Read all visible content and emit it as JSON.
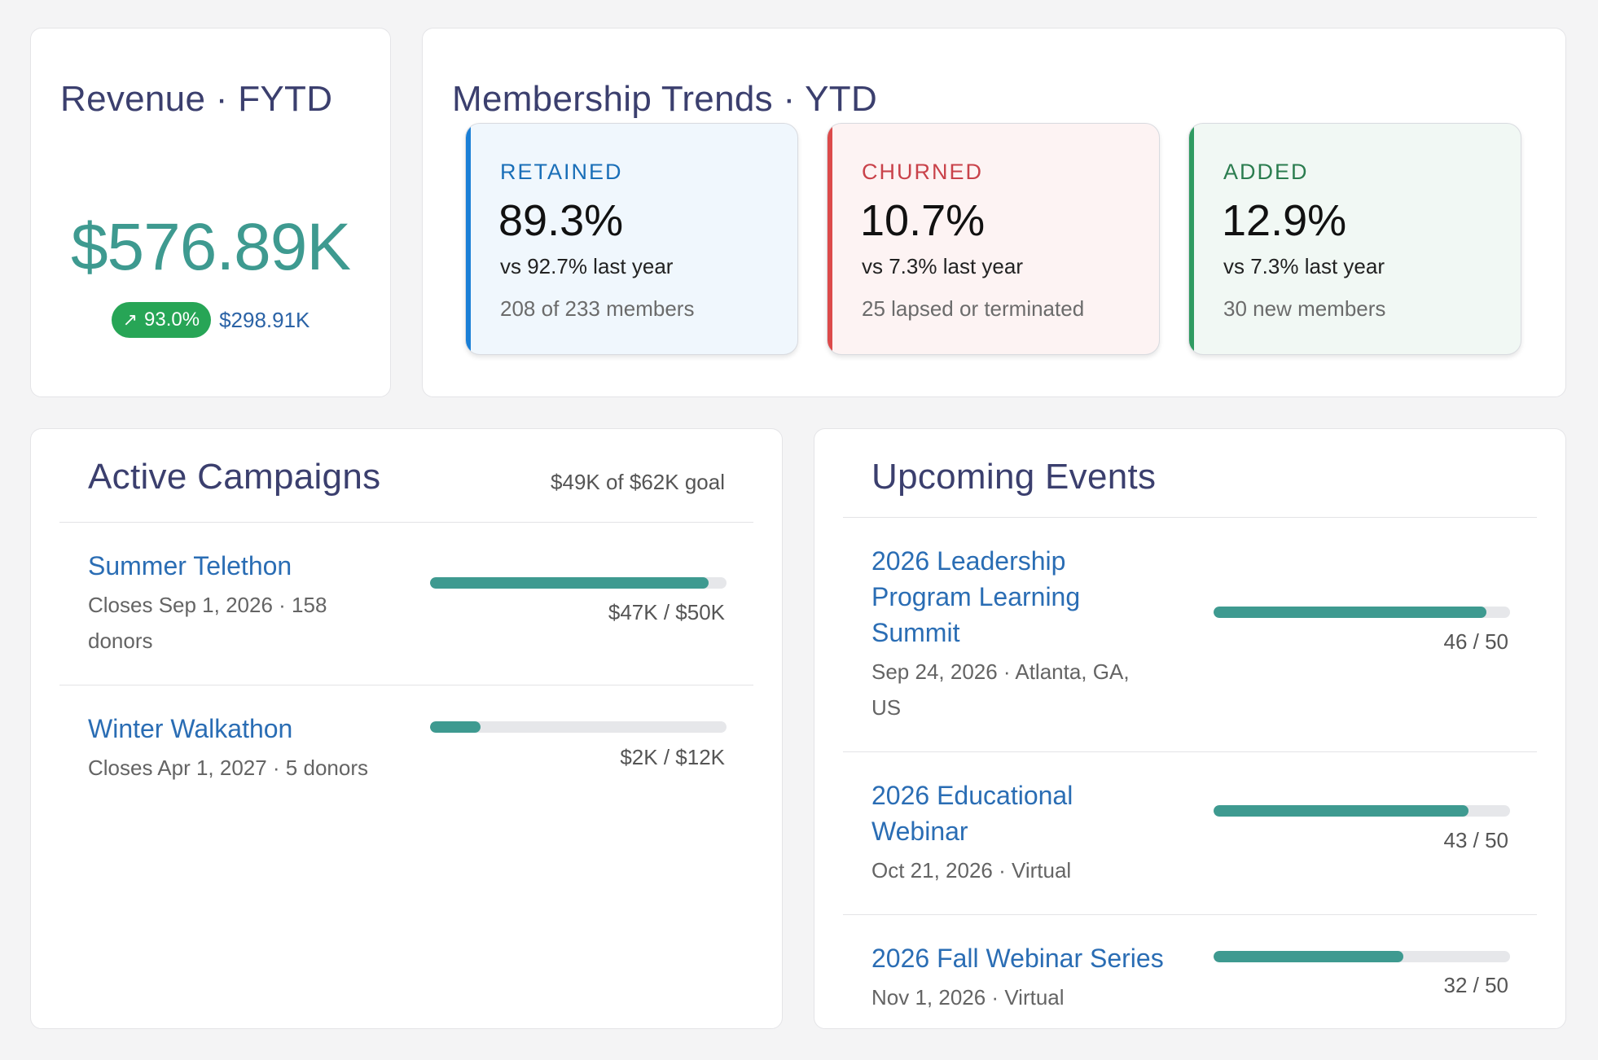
{
  "revenue": {
    "title": "Revenue · FYTD",
    "amount": "$576.89K",
    "delta_icon": "arrow-up-right-icon",
    "delta_percent": "93.0%",
    "delta_amount": "$298.91K",
    "accent_color": "#3e9a90"
  },
  "membership": {
    "title": "Membership Trends · YTD",
    "stats": [
      {
        "label": "RETAINED",
        "value": "89.3%",
        "comparison": "vs 92.7% last year",
        "detail": "208 of 233 members",
        "color": "#1a7fd6"
      },
      {
        "label": "CHURNED",
        "value": "10.7%",
        "comparison": "vs 7.3% last year",
        "detail": "25 lapsed or terminated",
        "color": "#dc4a4a"
      },
      {
        "label": "ADDED",
        "value": "12.9%",
        "comparison": "vs 7.3% last year",
        "detail": "30 new members",
        "color": "#2f9b61"
      }
    ]
  },
  "campaigns": {
    "title": "Active Campaigns",
    "goal_summary": "$49K of $62K goal",
    "items": [
      {
        "name": "Summer Telethon",
        "meta_line1": "Closes Sep 1, 2026 · 158",
        "meta_line2": "donors",
        "progress_label": "$47K / $50K",
        "progress": 0.94
      },
      {
        "name": "Winter Walkathon",
        "meta_line1": "Closes Apr 1, 2027 · 5 donors",
        "meta_line2": "",
        "progress_label": "$2K / $12K",
        "progress": 0.17
      }
    ]
  },
  "events": {
    "title": "Upcoming Events",
    "items": [
      {
        "name_line1": "2026 Leadership",
        "name_line2": "Program Learning",
        "name_line3": "Summit",
        "meta_line1": "Sep 24, 2026 · Atlanta, GA,",
        "meta_line2": "US",
        "progress_label": "46 / 50",
        "progress": 0.92
      },
      {
        "name_line1": "2026 Educational",
        "name_line2": "Webinar",
        "name_line3": "",
        "meta_line1": "Oct 21, 2026 · Virtual",
        "meta_line2": "",
        "progress_label": "43 / 50",
        "progress": 0.86
      },
      {
        "name_line1": "2026 Fall Webinar Series",
        "name_line2": "",
        "name_line3": "",
        "meta_line1": "Nov 1, 2026 · Virtual",
        "meta_line2": "",
        "progress_label": "32 / 50",
        "progress": 0.64
      }
    ]
  }
}
